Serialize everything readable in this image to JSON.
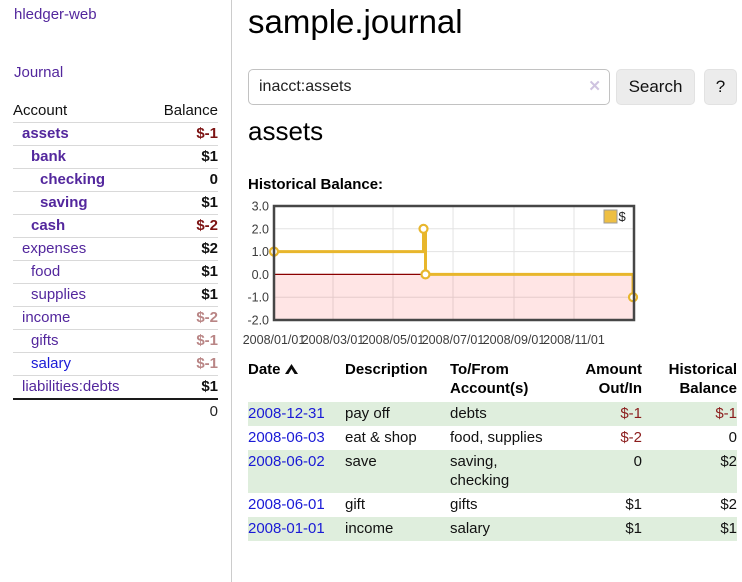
{
  "app": {
    "brand": "hledger-web",
    "nav_journal": "Journal"
  },
  "colors": {
    "accent_purple": "#53279d",
    "link_blue": "#1a1ad6",
    "negative_red": "#8b1c1c",
    "negative_red_strong": "#7c1313",
    "negative_red_faded": "#b98585",
    "row_stripe_green": "#dfeedd",
    "chart_gold": "#e8b62c"
  },
  "sidebar": {
    "header": {
      "account": "Account",
      "balance": "Balance"
    },
    "accounts": [
      {
        "name": "assets",
        "balance": "$-1",
        "indent": 1,
        "bold": true,
        "tone": "neg-strong"
      },
      {
        "name": "bank",
        "balance": "$1",
        "indent": 2,
        "bold": true,
        "tone": ""
      },
      {
        "name": "checking",
        "balance": "0",
        "indent": 3,
        "bold": true,
        "tone": ""
      },
      {
        "name": "saving",
        "balance": "$1",
        "indent": 3,
        "bold": true,
        "tone": ""
      },
      {
        "name": "cash",
        "balance": "$-2",
        "indent": 2,
        "bold": true,
        "tone": "neg-strong"
      },
      {
        "name": "expenses",
        "balance": "$2",
        "indent": 1,
        "bold": false,
        "tone": ""
      },
      {
        "name": "food",
        "balance": "$1",
        "indent": 2,
        "bold": false,
        "tone": ""
      },
      {
        "name": "supplies",
        "balance": "$1",
        "indent": 2,
        "bold": false,
        "tone": ""
      },
      {
        "name": "income",
        "balance": "$-2",
        "indent": 1,
        "bold": false,
        "tone": "neg-faded"
      },
      {
        "name": "gifts",
        "balance": "$-1",
        "indent": 2,
        "bold": false,
        "tone": "neg-faded"
      },
      {
        "name": "salary",
        "balance": "$-1",
        "indent": 2,
        "bold": false,
        "tone": "neg-faded",
        "blue": true
      },
      {
        "name": "liabilities:debts",
        "balance": "$1",
        "indent": 1,
        "bold": false,
        "tone": ""
      }
    ],
    "total": "0"
  },
  "main": {
    "title": "sample.journal",
    "search": {
      "value": "inacct:assets",
      "clear_icon": "✕",
      "button": "Search",
      "help": "?"
    },
    "account_heading": "assets",
    "chart_label": "Historical Balance:"
  },
  "chart_data": {
    "type": "line",
    "title": "Historical Balance",
    "series": [
      {
        "name": "$",
        "step": true,
        "points": [
          {
            "date": "2008-01-01",
            "value": 1.0
          },
          {
            "date": "2008-06-01",
            "value": 2.0
          },
          {
            "date": "2008-06-03",
            "value": 0.0
          },
          {
            "date": "2008-12-31",
            "value": -1.0
          }
        ]
      }
    ],
    "xrange": [
      "2008-01-01",
      "2009-01-01"
    ],
    "ylim": [
      -2.0,
      3.0
    ],
    "yticks": [
      3.0,
      2.0,
      1.0,
      0.0,
      -1.0,
      -2.0
    ],
    "xticks": [
      "2008/01/01",
      "2008/03/01",
      "2008/05/01",
      "2008/07/01",
      "2008/09/01",
      "2008/11/01"
    ],
    "legend": {
      "label": "$",
      "position": "top-right",
      "color": "#eebf43"
    },
    "line_color": "#e8b62c",
    "negative_fill": "rgba(255,0,0,0.10)",
    "zero_line_color": "#8b0000",
    "grid": true
  },
  "register": {
    "headers": {
      "date": "Date",
      "description": "Description",
      "accounts": "To/From Account(s)",
      "amount": "Amount Out/In",
      "balance": "Historical Balance"
    },
    "sort": "ascending",
    "rows": [
      {
        "date": "2008-12-31",
        "description": "pay off",
        "accounts": "debts",
        "amount": "$-1",
        "balance": "$-1"
      },
      {
        "date": "2008-06-03",
        "description": "eat & shop",
        "accounts": "food, supplies",
        "amount": "$-2",
        "balance": "0"
      },
      {
        "date": "2008-06-02",
        "description": "save",
        "accounts": "saving, checking",
        "amount": "0",
        "balance": "$2"
      },
      {
        "date": "2008-06-01",
        "description": "gift",
        "accounts": "gifts",
        "amount": "$1",
        "balance": "$2"
      },
      {
        "date": "2008-01-01",
        "description": "income",
        "accounts": "salary",
        "amount": "$1",
        "balance": "$1"
      }
    ]
  }
}
